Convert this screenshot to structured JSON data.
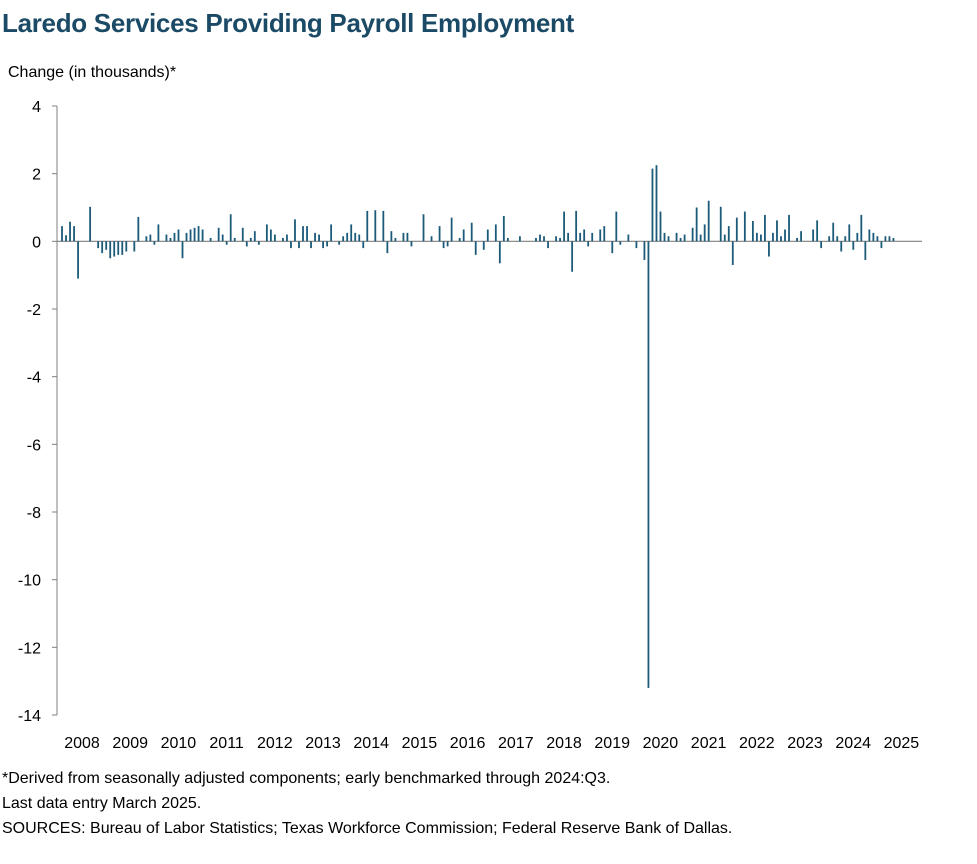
{
  "chart_data": {
    "type": "bar",
    "title": "Laredo Services Providing Payroll Employment",
    "ylabel": "Change (in thousands)*",
    "xlabel": "",
    "ylim": [
      -14,
      4
    ],
    "yticks": [
      4,
      2,
      0,
      -2,
      -4,
      -6,
      -8,
      -10,
      -12,
      -14
    ],
    "ytick_labels": [
      "4",
      "2",
      "0",
      "-2",
      "-4",
      "-6",
      "-8",
      "-10",
      "-12",
      "-14"
    ],
    "xtick_labels": [
      "2008",
      "2009",
      "2010",
      "2011",
      "2012",
      "2013",
      "2014",
      "2015",
      "2016",
      "2017",
      "2018",
      "2019",
      "2020",
      "2021",
      "2022",
      "2023",
      "2024",
      "2025"
    ],
    "start": "2008-01",
    "end": "2025-03",
    "series": [
      {
        "name": "Monthly change",
        "color": "#1b5a78",
        "values": [
          0.45,
          0.18,
          0.58,
          0.45,
          -1.1,
          0.0,
          0.0,
          1.02,
          0.0,
          -0.2,
          -0.35,
          -0.25,
          -0.5,
          -0.45,
          -0.4,
          -0.4,
          -0.3,
          0.0,
          -0.3,
          0.72,
          0.0,
          0.15,
          0.2,
          -0.1,
          0.5,
          0.0,
          0.2,
          0.1,
          0.25,
          0.35,
          -0.5,
          0.25,
          0.35,
          0.4,
          0.45,
          0.35,
          0.0,
          0.1,
          0.0,
          0.4,
          0.2,
          -0.1,
          0.8,
          0.1,
          0.0,
          0.4,
          -0.15,
          0.1,
          0.3,
          -0.1,
          0.0,
          0.5,
          0.35,
          0.2,
          0.0,
          0.1,
          0.2,
          -0.2,
          0.65,
          -0.2,
          0.45,
          0.45,
          -0.2,
          0.25,
          0.2,
          -0.2,
          -0.15,
          0.5,
          0.0,
          -0.1,
          0.15,
          0.25,
          0.5,
          0.25,
          0.2,
          -0.2,
          0.9,
          0.0,
          0.92,
          0.0,
          0.9,
          -0.35,
          0.3,
          0.1,
          0.0,
          0.25,
          0.25,
          -0.15,
          0.0,
          0.0,
          0.8,
          0.0,
          0.15,
          0.0,
          0.45,
          -0.2,
          -0.15,
          0.7,
          0.0,
          0.1,
          0.35,
          0.0,
          0.55,
          -0.4,
          0.0,
          -0.25,
          0.35,
          0.0,
          0.5,
          -0.65,
          0.75,
          0.1,
          0.0,
          0.0,
          0.15,
          0.0,
          0.0,
          0.0,
          0.1,
          0.2,
          0.15,
          -0.2,
          0.0,
          0.15,
          0.1,
          0.88,
          0.25,
          -0.9,
          0.9,
          0.25,
          0.35,
          -0.15,
          0.25,
          0.0,
          0.35,
          0.45,
          0.0,
          -0.35,
          0.88,
          -0.1,
          0.0,
          0.2,
          0.0,
          -0.2,
          0.0,
          -0.55,
          -13.2,
          2.15,
          2.25,
          0.88,
          0.25,
          0.15,
          0.0,
          0.25,
          0.1,
          0.2,
          0.0,
          0.4,
          1.0,
          0.2,
          0.5,
          1.2,
          0.0,
          0.0,
          1.02,
          0.2,
          0.45,
          -0.7,
          0.7,
          0.0,
          0.88,
          0.0,
          0.6,
          0.25,
          0.2,
          0.78,
          -0.45,
          0.25,
          0.62,
          0.15,
          0.35,
          0.78,
          0.0,
          0.1,
          0.3,
          0.0,
          0.0,
          0.35,
          0.62,
          -0.2,
          0.0,
          0.15,
          0.55,
          0.15,
          -0.3,
          0.15,
          0.5,
          -0.25,
          0.25,
          0.78,
          -0.55,
          0.35,
          0.25,
          0.15,
          -0.2,
          0.15,
          0.15,
          0.1
        ]
      }
    ]
  },
  "footnotes": {
    "note": "*Derived from seasonally adjusted components; early benchmarked through 2024:Q3.",
    "last_entry": "Last data entry March 2025.",
    "sources": "SOURCES:  Bureau of Labor Statistics; Texas Workforce Commission;  Federal Reserve Bank of Dallas."
  }
}
